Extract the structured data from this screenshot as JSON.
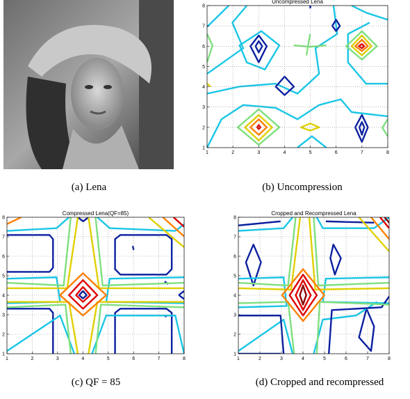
{
  "panels": [
    {
      "caption": "(a)  Lena"
    },
    {
      "caption": "(b)  Uncompression",
      "chart_data": {
        "type": "contour",
        "title": "Uncompressed Lena",
        "xlim": [
          1,
          8
        ],
        "ylim": [
          1,
          8
        ],
        "xticks": [
          1,
          2,
          3,
          4,
          5,
          6,
          7,
          8
        ],
        "yticks": [
          1,
          2,
          3,
          4,
          5,
          6,
          7,
          8
        ],
        "grid": true
      }
    },
    {
      "caption": "(c)  QF = 85",
      "chart_data": {
        "type": "contour",
        "title": "Compressed Lena(QF=85)",
        "xlim": [
          1,
          8
        ],
        "ylim": [
          1,
          8
        ],
        "xticks": [
          1,
          2,
          3,
          4,
          5,
          6,
          7,
          8
        ],
        "yticks": [
          1,
          2,
          3,
          4,
          5,
          6,
          7,
          8
        ],
        "grid": true
      }
    },
    {
      "caption": "(d)  Cropped and recompressed",
      "chart_data": {
        "type": "contour",
        "title": "Cropped and Recompressed Lena",
        "xlim": [
          1,
          8
        ],
        "ylim": [
          1,
          8
        ],
        "xticks": [
          1,
          2,
          3,
          4,
          5,
          6,
          7,
          8
        ],
        "yticks": [
          1,
          2,
          3,
          4,
          5,
          6,
          7,
          8
        ],
        "grid": true
      }
    }
  ]
}
